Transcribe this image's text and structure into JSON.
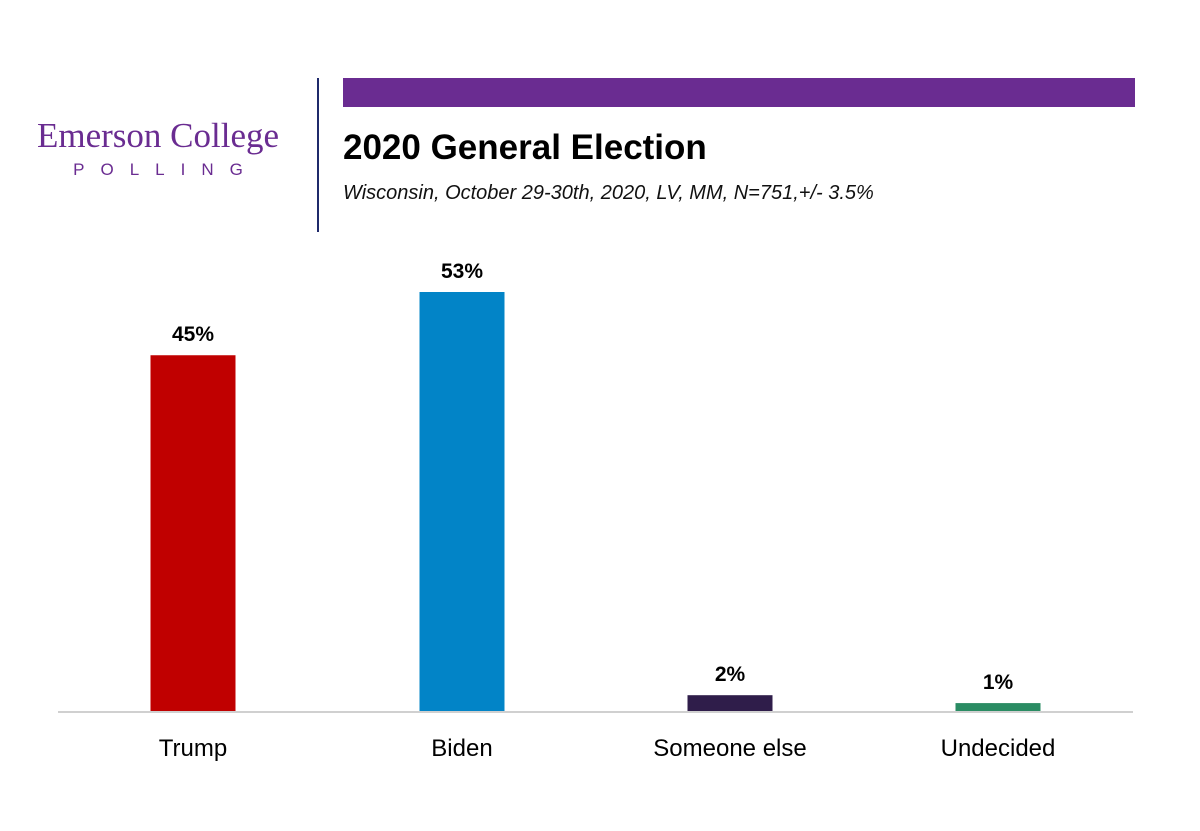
{
  "logo": {
    "name": "Emerson College",
    "tagline": "POLLING"
  },
  "colors": {
    "accent": "#6a2c91",
    "divider": "#1f2a6b"
  },
  "chart_data": {
    "type": "bar",
    "title": "2020 General Election",
    "subtitle": "Wisconsin, October 29-30th, 2020, LV, MM,  N=751,+/- 3.5%",
    "categories": [
      "Trump",
      "Biden",
      "Someone else",
      "Undecided"
    ],
    "values": [
      45,
      53,
      2,
      1
    ],
    "value_labels": [
      "45%",
      "53%",
      "2%",
      "1%"
    ],
    "colors": [
      "#c00000",
      "#0284c7",
      "#2f1d4a",
      "#2a8c63"
    ],
    "unit": "%",
    "ylim": [
      0,
      53
    ],
    "grid": false,
    "legend": "none"
  }
}
